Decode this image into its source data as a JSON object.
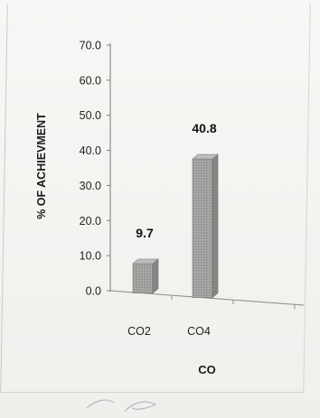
{
  "chart_data": {
    "type": "bar",
    "categories": [
      "CO2",
      "CO4"
    ],
    "values": [
      9.7,
      40.8
    ],
    "data_labels": [
      "9.7",
      "40.8"
    ],
    "title": "",
    "xlabel": "CO",
    "ylabel": "% OF ACHIEVMENT",
    "ylim": [
      0,
      70
    ],
    "yticks": [
      "0.0",
      "10.0",
      "20.0",
      "30.0",
      "40.0",
      "50.0",
      "60.0",
      "70.0"
    ],
    "grid": false,
    "bar_color": "#9c9c9a",
    "bar_style": "3d"
  }
}
